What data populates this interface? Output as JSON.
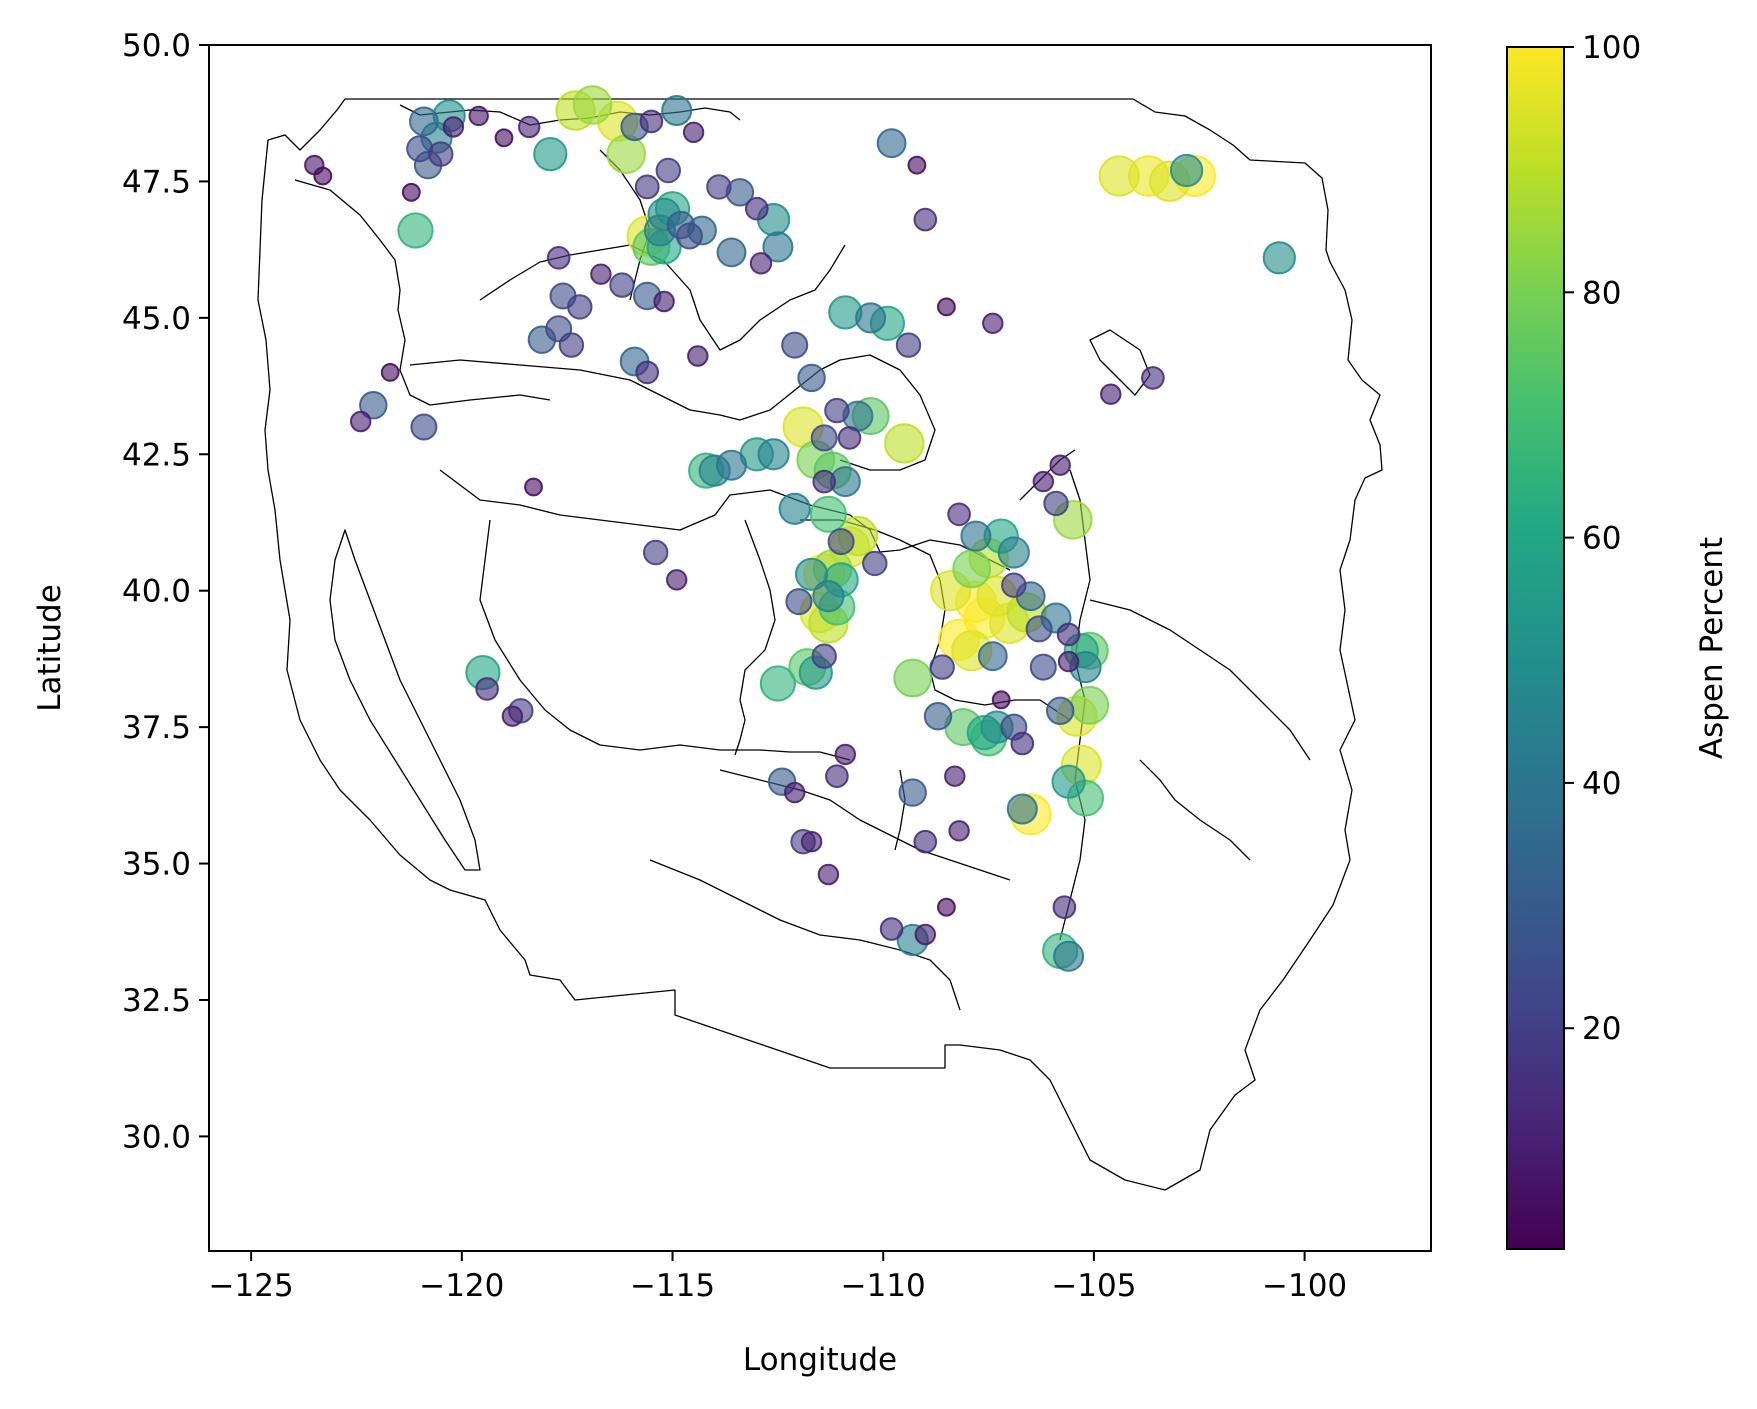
{
  "chart_data": {
    "type": "scatter",
    "title": "",
    "xlabel": "Longitude",
    "ylabel": "Latitude",
    "xlim": [
      -126,
      -97
    ],
    "ylim": [
      27.9,
      50
    ],
    "xticks": [
      -125,
      -120,
      -115,
      -110,
      -105,
      -100
    ],
    "xtick_labels": [
      "−125",
      "−120",
      "−115",
      "−110",
      "−105",
      "−100"
    ],
    "yticks": [
      30.0,
      32.5,
      35.0,
      37.5,
      40.0,
      42.5,
      45.0,
      47.5,
      50.0
    ],
    "ytick_labels": [
      "30.0",
      "32.5",
      "35.0",
      "37.5",
      "40.0",
      "42.5",
      "45.0",
      "47.5",
      "50.0"
    ],
    "grid": false,
    "colormap": "viridis",
    "marker_alpha": 0.6,
    "marker_size_encodes": "Aspen Percent",
    "colorbar": {
      "label": "Aspen Percent",
      "range": [
        2,
        100
      ],
      "ticks": [
        20,
        40,
        60,
        80,
        100
      ],
      "tick_labels": [
        "20",
        "40",
        "60",
        "80",
        "100"
      ]
    },
    "point_fields": [
      "lon",
      "lat",
      "aspen_percent"
    ],
    "points": [
      [
        -123.5,
        47.8,
        8
      ],
      [
        -123.3,
        47.6,
        5
      ],
      [
        -120.9,
        48.6,
        35
      ],
      [
        -120.6,
        48.3,
        45
      ],
      [
        -120.3,
        48.7,
        50
      ],
      [
        -120.8,
        47.8,
        30
      ],
      [
        -120.5,
        48.0,
        20
      ],
      [
        -121.0,
        48.1,
        25
      ],
      [
        -120.2,
        48.5,
        10
      ],
      [
        -121.2,
        47.3,
        5
      ],
      [
        -121.1,
        46.6,
        65
      ],
      [
        -119.6,
        48.7,
        8
      ],
      [
        -119.0,
        48.3,
        5
      ],
      [
        -118.4,
        48.5,
        12
      ],
      [
        -117.3,
        48.8,
        90
      ],
      [
        -116.9,
        48.9,
        85
      ],
      [
        -116.3,
        48.6,
        95
      ],
      [
        -115.9,
        48.5,
        30
      ],
      [
        -115.5,
        48.6,
        15
      ],
      [
        -114.9,
        48.8,
        40
      ],
      [
        -114.5,
        48.4,
        10
      ],
      [
        -117.9,
        48.0,
        55
      ],
      [
        -116.1,
        48.0,
        85
      ],
      [
        -115.1,
        47.7,
        20
      ],
      [
        -115.6,
        47.4,
        18
      ],
      [
        -115.2,
        46.9,
        50
      ],
      [
        -115.0,
        47.0,
        60
      ],
      [
        -115.3,
        46.6,
        45
      ],
      [
        -115.6,
        46.5,
        95
      ],
      [
        -115.5,
        46.3,
        75
      ],
      [
        -115.2,
        46.3,
        60
      ],
      [
        -114.8,
        46.7,
        30
      ],
      [
        -114.6,
        46.5,
        25
      ],
      [
        -114.3,
        46.6,
        35
      ],
      [
        -113.9,
        47.4,
        20
      ],
      [
        -113.4,
        47.3,
        30
      ],
      [
        -113.0,
        47.0,
        15
      ],
      [
        -112.6,
        46.8,
        50
      ],
      [
        -112.5,
        46.3,
        40
      ],
      [
        -113.6,
        46.2,
        35
      ],
      [
        -112.9,
        46.0,
        12
      ],
      [
        -116.7,
        45.8,
        10
      ],
      [
        -116.2,
        45.6,
        20
      ],
      [
        -115.6,
        45.4,
        30
      ],
      [
        -115.2,
        45.3,
        10
      ],
      [
        -117.7,
        46.1,
        15
      ],
      [
        -117.6,
        45.4,
        25
      ],
      [
        -117.2,
        45.2,
        20
      ],
      [
        -118.1,
        44.6,
        30
      ],
      [
        -117.7,
        44.8,
        25
      ],
      [
        -117.4,
        44.5,
        20
      ],
      [
        -115.9,
        44.2,
        35
      ],
      [
        -115.6,
        44.0,
        15
      ],
      [
        -114.4,
        44.3,
        10
      ],
      [
        -112.1,
        44.5,
        25
      ],
      [
        -110.9,
        45.1,
        55
      ],
      [
        -110.3,
        45.0,
        40
      ],
      [
        -109.9,
        44.9,
        60
      ],
      [
        -109.4,
        44.5,
        20
      ],
      [
        -109.8,
        48.2,
        35
      ],
      [
        -109.2,
        47.8,
        5
      ],
      [
        -109.0,
        46.8,
        15
      ],
      [
        -108.5,
        45.2,
        5
      ],
      [
        -107.4,
        44.9,
        10
      ],
      [
        -104.4,
        47.6,
        95
      ],
      [
        -103.7,
        47.6,
        98
      ],
      [
        -103.2,
        47.5,
        95
      ],
      [
        -102.6,
        47.6,
        100
      ],
      [
        -102.8,
        47.7,
        50
      ],
      [
        -100.6,
        46.1,
        50
      ],
      [
        -103.6,
        43.9,
        15
      ],
      [
        -104.6,
        43.6,
        10
      ],
      [
        -111.7,
        43.9,
        30
      ],
      [
        -111.1,
        43.3,
        20
      ],
      [
        -110.6,
        43.2,
        40
      ],
      [
        -110.3,
        43.2,
        75
      ],
      [
        -109.5,
        42.7,
        90
      ],
      [
        -111.9,
        43.0,
        95
      ],
      [
        -111.4,
        42.8,
        25
      ],
      [
        -110.8,
        42.8,
        15
      ],
      [
        -112.6,
        42.5,
        45
      ],
      [
        -113.0,
        42.5,
        55
      ],
      [
        -113.6,
        42.3,
        40
      ],
      [
        -114.2,
        42.2,
        65
      ],
      [
        -114.0,
        42.2,
        45
      ],
      [
        -111.6,
        42.4,
        80
      ],
      [
        -111.2,
        42.2,
        75
      ],
      [
        -110.9,
        42.0,
        40
      ],
      [
        -111.4,
        42.0,
        15
      ],
      [
        -112.1,
        41.5,
        45
      ],
      [
        -111.3,
        41.4,
        70
      ],
      [
        -111.0,
        40.9,
        25
      ],
      [
        -110.6,
        41.0,
        90
      ],
      [
        -110.8,
        40.8,
        95
      ],
      [
        -110.2,
        40.5,
        20
      ],
      [
        -111.7,
        40.3,
        50
      ],
      [
        -111.4,
        40.3,
        100
      ],
      [
        -111.2,
        40.4,
        85
      ],
      [
        -111.0,
        40.2,
        60
      ],
      [
        -111.3,
        39.9,
        45
      ],
      [
        -111.1,
        39.7,
        70
      ],
      [
        -111.5,
        39.6,
        95
      ],
      [
        -111.3,
        39.4,
        90
      ],
      [
        -112.0,
        39.8,
        25
      ],
      [
        -112.5,
        38.3,
        65
      ],
      [
        -111.6,
        38.5,
        55
      ],
      [
        -111.8,
        38.6,
        75
      ],
      [
        -111.4,
        38.8,
        20
      ],
      [
        -115.4,
        40.7,
        20
      ],
      [
        -114.9,
        40.2,
        10
      ],
      [
        -119.5,
        38.5,
        60
      ],
      [
        -119.4,
        38.2,
        15
      ],
      [
        -118.8,
        37.7,
        10
      ],
      [
        -118.6,
        37.8,
        20
      ],
      [
        -120.9,
        43.0,
        25
      ],
      [
        -122.1,
        43.4,
        30
      ],
      [
        -122.4,
        43.1,
        10
      ],
      [
        -121.7,
        44.0,
        5
      ],
      [
        -118.3,
        41.9,
        5
      ],
      [
        -108.2,
        41.4,
        15
      ],
      [
        -107.8,
        41.0,
        40
      ],
      [
        -107.2,
        41.0,
        60
      ],
      [
        -106.9,
        40.7,
        45
      ],
      [
        -107.5,
        40.6,
        90
      ],
      [
        -107.9,
        40.4,
        80
      ],
      [
        -108.4,
        40.0,
        95
      ],
      [
        -107.8,
        39.8,
        100
      ],
      [
        -107.3,
        39.9,
        95
      ],
      [
        -106.9,
        40.1,
        20
      ],
      [
        -106.5,
        39.9,
        35
      ],
      [
        -107.6,
        39.5,
        100
      ],
      [
        -107.0,
        39.4,
        95
      ],
      [
        -106.6,
        39.6,
        90
      ],
      [
        -106.3,
        39.3,
        25
      ],
      [
        -105.9,
        39.5,
        40
      ],
      [
        -105.6,
        39.2,
        15
      ],
      [
        -105.3,
        38.9,
        60
      ],
      [
        -105.1,
        38.9,
        75
      ],
      [
        -105.2,
        38.6,
        45
      ],
      [
        -105.6,
        38.7,
        10
      ],
      [
        -106.2,
        38.6,
        25
      ],
      [
        -108.2,
        39.1,
        100
      ],
      [
        -107.9,
        38.9,
        95
      ],
      [
        -107.4,
        38.8,
        35
      ],
      [
        -108.6,
        38.6,
        20
      ],
      [
        -109.3,
        38.4,
        80
      ],
      [
        -108.7,
        37.7,
        30
      ],
      [
        -108.1,
        37.5,
        75
      ],
      [
        -107.6,
        37.4,
        60
      ],
      [
        -107.3,
        37.5,
        50
      ],
      [
        -107.5,
        37.3,
        70
      ],
      [
        -106.9,
        37.5,
        25
      ],
      [
        -106.7,
        37.2,
        15
      ],
      [
        -105.8,
        37.8,
        30
      ],
      [
        -105.4,
        37.7,
        95
      ],
      [
        -105.1,
        37.9,
        80
      ],
      [
        -105.3,
        36.8,
        95
      ],
      [
        -105.2,
        36.2,
        70
      ],
      [
        -105.6,
        36.5,
        55
      ],
      [
        -106.5,
        35.9,
        100
      ],
      [
        -106.7,
        36.0,
        40
      ],
      [
        -105.7,
        34.2,
        15
      ],
      [
        -105.8,
        33.4,
        65
      ],
      [
        -105.6,
        33.3,
        40
      ],
      [
        -105.5,
        41.3,
        85
      ],
      [
        -106.2,
        42.0,
        10
      ],
      [
        -105.9,
        41.6,
        20
      ],
      [
        -105.8,
        42.3,
        10
      ],
      [
        -109.3,
        36.3,
        30
      ],
      [
        -110.9,
        37.0,
        10
      ],
      [
        -111.1,
        36.6,
        15
      ],
      [
        -112.4,
        36.5,
        30
      ],
      [
        -112.1,
        36.3,
        10
      ],
      [
        -111.9,
        35.4,
        20
      ],
      [
        -111.7,
        35.4,
        10
      ],
      [
        -111.3,
        34.8,
        10
      ],
      [
        -109.8,
        33.8,
        15
      ],
      [
        -109.3,
        33.6,
        45
      ],
      [
        -109.0,
        33.7,
        10
      ],
      [
        -108.5,
        34.2,
        5
      ],
      [
        -107.2,
        38.0,
        5
      ],
      [
        -108.3,
        36.6,
        10
      ],
      [
        -109.0,
        35.4,
        15
      ],
      [
        -108.2,
        35.6,
        10
      ]
    ]
  }
}
